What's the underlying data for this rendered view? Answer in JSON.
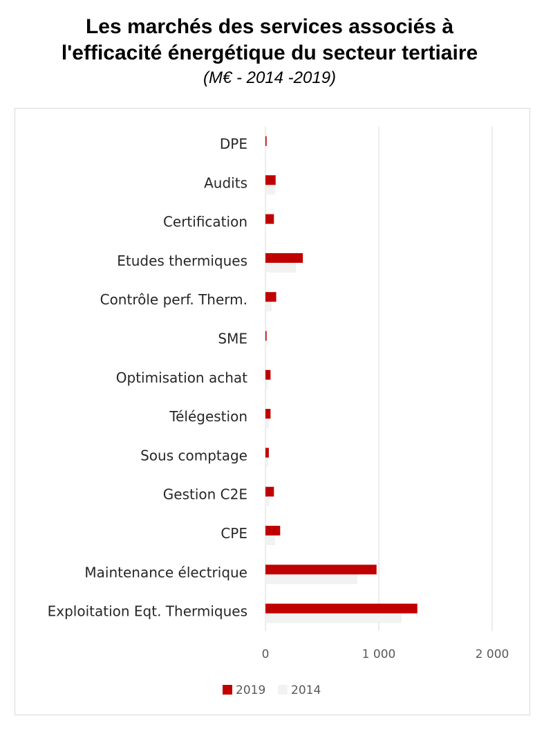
{
  "header": {
    "title_line1": "Les marchés des services associés à",
    "title_line2": "l'efficacité énergétique du secteur tertiaire",
    "subtitle": "(M€ - 2014 -2019)"
  },
  "chart_data": {
    "type": "bar",
    "orientation": "horizontal",
    "categories": [
      "DPE",
      "Audits",
      "Certification",
      "Etudes thermiques",
      "Contrôle perf. Therm.",
      "SME",
      "Optimisation achat",
      "Télégestion",
      "Sous comptage",
      "Gestion C2E",
      "CPE",
      "Maintenance électrique",
      "Exploitation Eqt. Thermiques"
    ],
    "series": [
      {
        "name": "2019",
        "color": "#c00000",
        "values": [
          10,
          90,
          75,
          330,
          95,
          10,
          45,
          45,
          30,
          75,
          130,
          980,
          1340
        ]
      },
      {
        "name": "2014",
        "color": "#f2f2f2",
        "values": [
          5,
          85,
          5,
          270,
          55,
          5,
          20,
          30,
          25,
          35,
          85,
          810,
          1200
        ]
      }
    ],
    "xlim": [
      0,
      2000
    ],
    "xticks": [
      0,
      1000,
      2000
    ],
    "xtick_labels": [
      "0",
      "1 000",
      "2 000"
    ],
    "grid": true,
    "legend_position": "bottom"
  }
}
